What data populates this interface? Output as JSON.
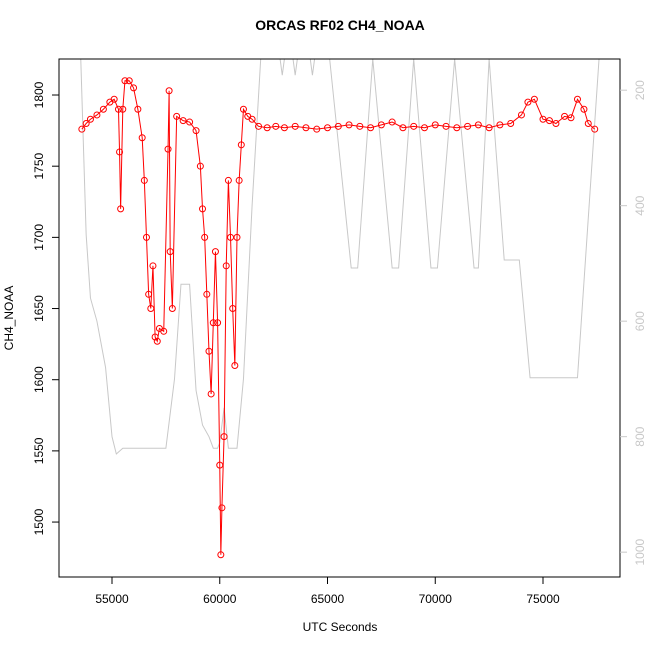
{
  "chart_data": {
    "type": "line",
    "title": "ORCAS RF02 CH4_NOAA",
    "xlabel": "UTC Seconds",
    "ylabel": "CH4_NOAA",
    "xlim": [
      52540,
      78573
    ],
    "xticks": [
      55000,
      60000,
      65000,
      70000,
      75000
    ],
    "ylim": [
      1461.4,
      1825.3
    ],
    "yticks": [
      1500,
      1550,
      1600,
      1650,
      1700,
      1750,
      1800
    ],
    "y2lim": [
      1043,
      146
    ],
    "y2ticks": [
      200,
      400,
      600,
      800,
      1000
    ],
    "series": [
      {
        "color": "#ff0000",
        "marker": "circle",
        "x": [
          53600,
          53800,
          54000,
          54300,
          54600,
          54900,
          55100,
          55300,
          55350,
          55400,
          55500,
          55600,
          55800,
          56000,
          56200,
          56400,
          56500,
          56600,
          56700,
          56800,
          56900,
          57000,
          57100,
          57200,
          57400,
          57600,
          57650,
          57700,
          57800,
          58000,
          58300,
          58600,
          58900,
          59100,
          59200,
          59300,
          59400,
          59500,
          59600,
          59700,
          59800,
          59900,
          60000,
          60050,
          60100,
          60200,
          60300,
          60400,
          60500,
          60600,
          60700,
          60800,
          60900,
          61000,
          61100,
          61300,
          61500,
          61800,
          62200,
          62600,
          63000,
          63500,
          64000,
          64500,
          65000,
          65500,
          66000,
          66500,
          67000,
          67500,
          68000,
          68500,
          69000,
          69500,
          70000,
          70500,
          71000,
          71500,
          72000,
          72500,
          73000,
          73500,
          74000,
          74300,
          74600,
          75000,
          75300,
          75600,
          76000,
          76300,
          76600,
          76900,
          77100,
          77400
        ],
        "values": [
          1776,
          1780,
          1783,
          1786,
          1790,
          1795,
          1797,
          1790,
          1760,
          1720,
          1790,
          1810,
          1810,
          1805,
          1790,
          1770,
          1740,
          1700,
          1660,
          1650,
          1680,
          1630,
          1627,
          1636,
          1634,
          1762,
          1803,
          1690,
          1650,
          1785,
          1782,
          1781,
          1775,
          1750,
          1720,
          1700,
          1660,
          1620,
          1590,
          1640,
          1690,
          1640,
          1540,
          1477,
          1510,
          1560,
          1680,
          1740,
          1700,
          1650,
          1610,
          1700,
          1740,
          1765,
          1790,
          1785,
          1783,
          1778,
          1777,
          1778,
          1777,
          1778,
          1777,
          1776,
          1777,
          1778,
          1779,
          1778,
          1777,
          1779,
          1781,
          1777,
          1778,
          1777,
          1779,
          1778,
          1777,
          1778,
          1779,
          1777,
          1779,
          1780,
          1786,
          1795,
          1797,
          1783,
          1782,
          1780,
          1785,
          1784,
          1797,
          1790,
          1780,
          1776
        ]
      },
      {
        "color": "#c8c8c8",
        "axis": "y2",
        "x": [
          53550,
          53800,
          54000,
          54300,
          54700,
          55000,
          55200,
          55500,
          57500,
          57900,
          58200,
          58600,
          58900,
          59200,
          59500,
          59700,
          59900,
          60000,
          60200,
          60400,
          60800,
          61100,
          61500,
          61900,
          62800,
          62900,
          63000,
          63400,
          63500,
          63600,
          64200,
          64300,
          64400,
          65100,
          66100,
          66400,
          67100,
          68000,
          68300,
          69000,
          69800,
          70100,
          70900,
          71800,
          72000,
          72500,
          73200,
          73900,
          74400,
          76600,
          77600
        ],
        "values": [
          146,
          450,
          560,
          600,
          680,
          800,
          830,
          820,
          820,
          700,
          536,
          536,
          720,
          780,
          800,
          820,
          820,
          810,
          750,
          820,
          820,
          700,
          400,
          146,
          146,
          174,
          146,
          146,
          174,
          146,
          146,
          174,
          146,
          146,
          508,
          508,
          146,
          508,
          508,
          146,
          508,
          508,
          146,
          508,
          508,
          146,
          494,
          494,
          698,
          698,
          146
        ]
      }
    ]
  }
}
